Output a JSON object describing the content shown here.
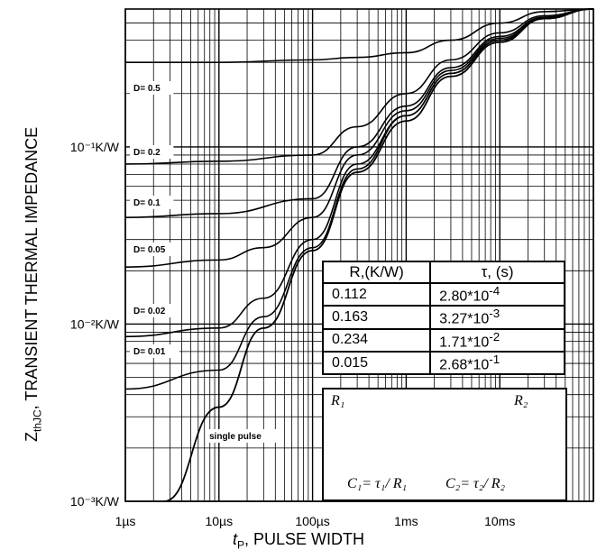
{
  "chart_data": {
    "type": "line",
    "scale": {
      "x": "log",
      "y": "log"
    },
    "xlim": [
      "1µs",
      "100ms"
    ],
    "ylim": [
      "0.001",
      "0.6"
    ],
    "grid": true,
    "x_tick_labels": [
      "1µs",
      "10µs",
      "100µs",
      "1ms",
      "10ms"
    ],
    "y_tick_labels": [
      "10⁻¹K/W",
      "10⁻²K/W",
      "10⁻³K/W"
    ],
    "series": [
      {
        "name": "D= 0.5",
        "x": [
          1e-06,
          1e-05,
          0.0001,
          0.0003,
          0.001,
          0.003,
          0.01,
          0.03,
          0.1
        ],
        "y": [
          0.3,
          0.3,
          0.31,
          0.32,
          0.34,
          0.4,
          0.5,
          0.58,
          0.6
        ]
      },
      {
        "name": "D= 0.2",
        "x": [
          1e-06,
          1e-05,
          0.0001,
          0.0003,
          0.001,
          0.003,
          0.01,
          0.03,
          0.1
        ],
        "y": [
          0.08,
          0.083,
          0.09,
          0.13,
          0.2,
          0.31,
          0.44,
          0.55,
          0.6
        ]
      },
      {
        "name": "D= 0.1",
        "x": [
          1e-06,
          1e-05,
          0.0001,
          0.0003,
          0.001,
          0.003,
          0.01,
          0.03,
          0.1
        ],
        "y": [
          0.04,
          0.042,
          0.051,
          0.1,
          0.17,
          0.28,
          0.42,
          0.54,
          0.6
        ]
      },
      {
        "name": "D= 0.05",
        "x": [
          1e-06,
          1e-05,
          3e-05,
          0.0001,
          0.0003,
          0.001,
          0.003,
          0.01,
          0.03,
          0.1
        ],
        "y": [
          0.021,
          0.023,
          0.027,
          0.04,
          0.09,
          0.16,
          0.27,
          0.41,
          0.53,
          0.6
        ]
      },
      {
        "name": "D= 0.02",
        "x": [
          1e-06,
          1e-05,
          3e-05,
          0.0001,
          0.0003,
          0.001,
          0.003,
          0.01,
          0.03,
          0.1
        ],
        "y": [
          0.0085,
          0.0095,
          0.014,
          0.03,
          0.08,
          0.15,
          0.26,
          0.4,
          0.53,
          0.6
        ]
      },
      {
        "name": "D= 0.01",
        "x": [
          1e-06,
          1e-05,
          3e-05,
          0.0001,
          0.0003,
          0.001,
          0.003,
          0.01,
          0.03,
          0.1
        ],
        "y": [
          0.0043,
          0.0055,
          0.011,
          0.027,
          0.075,
          0.15,
          0.26,
          0.4,
          0.53,
          0.6
        ]
      },
      {
        "name": "single pulse",
        "x": [
          2.6e-06,
          1e-05,
          3e-05,
          0.0001,
          0.0003,
          0.001,
          0.003,
          0.01,
          0.03,
          0.1
        ],
        "y": [
          0.001,
          0.0034,
          0.0095,
          0.026,
          0.072,
          0.14,
          0.25,
          0.39,
          0.53,
          0.6
        ]
      }
    ],
    "curve_labels": [
      "D= 0.5",
      "D= 0.2",
      "D= 0.1",
      "D= 0.05",
      "D= 0.02",
      "D= 0.01",
      "single pulse"
    ]
  },
  "labels": {
    "x_axis_name": "PULSE WIDTH",
    "x_axis_symbol": "t",
    "x_axis_sub": "P",
    "y_axis_name": "TRANSIENT THERMAL IMPEDANCE",
    "y_axis_symbol": "Z",
    "y_axis_sub": "thJC"
  },
  "rc_table": {
    "header_r": "R,(K/W)",
    "header_tau": "τ, (s)",
    "rows": [
      {
        "r": "0.112",
        "tau_base": "2.80*10",
        "tau_exp": "-4"
      },
      {
        "r": "0.163",
        "tau_base": "3.27*10",
        "tau_exp": "-3"
      },
      {
        "r": "0.234",
        "tau_base": "1.71*10",
        "tau_exp": "-2"
      },
      {
        "r": "0.015",
        "tau_base": "2.68*10",
        "tau_exp": "-1"
      }
    ]
  },
  "circuit": {
    "r1": "R₁",
    "r2": "R₂",
    "c1": "C₁= τ₁/ R₁",
    "c2": "C₂= τ₂/ R₂"
  }
}
